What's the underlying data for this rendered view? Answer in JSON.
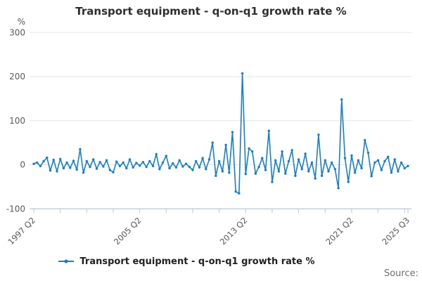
{
  "chart": {
    "title": "Transport equipment - q-on-q1 growth rate %",
    "unit": "%",
    "source_label": "Source:"
  },
  "legend": {
    "label": "Transport equipment - q-on-q1 growth rate %"
  },
  "colors": {
    "line": "#1a80c4",
    "grid": "#e6e6e6",
    "axis": "#b9c7d9",
    "tick_label": "#595959",
    "title": "#2e2e2e",
    "legend_text": "#1f1f1f",
    "source": "#6e6e6e"
  },
  "chart_data": {
    "type": "line",
    "title": "Transport equipment - q-on-q1 growth rate %",
    "xlabel": "",
    "ylabel": "%",
    "ylim": [
      -100,
      300
    ],
    "yticks": [
      300,
      200,
      100,
      0,
      -100
    ],
    "grid": "horizontal",
    "legend_position": "bottom",
    "x_unit": "quarter",
    "x_range": [
      "1997 Q2",
      "2025 Q3"
    ],
    "x_tick_labels": [
      {
        "index": 0,
        "label": "1997 Q2"
      },
      {
        "index": 32,
        "label": "2005 Q2"
      },
      {
        "index": 64,
        "label": "2013 Q2"
      },
      {
        "index": 96,
        "label": "2021 Q2"
      },
      {
        "index": 113,
        "label": "2025 Q3"
      }
    ],
    "minor_tick_step_quarters": 8,
    "series": [
      {
        "name": "Transport equipment - q-on-q1 growth rate %",
        "values": [
          2,
          5,
          -3,
          8,
          16,
          -13,
          11,
          -15,
          13,
          -8,
          5,
          -7,
          9,
          -11,
          35,
          -18,
          8,
          -5,
          12,
          -9,
          6,
          -4,
          10,
          -12,
          -17,
          7,
          -3,
          5,
          -8,
          12,
          -6,
          4,
          -2,
          6,
          -5,
          8,
          -3,
          24,
          -10,
          5,
          20,
          -8,
          3,
          -6,
          10,
          -4,
          2,
          -5,
          -12,
          8,
          -6,
          15,
          -10,
          12,
          50,
          -25,
          8,
          -15,
          45,
          -18,
          74,
          -61,
          -65,
          207,
          -21,
          37,
          30,
          -20,
          -5,
          15,
          -12,
          77,
          -39,
          10,
          -15,
          30,
          -20,
          8,
          33,
          -25,
          12,
          -10,
          25,
          -15,
          5,
          -31,
          68,
          -25,
          10,
          -15,
          5,
          -10,
          -53,
          148,
          15,
          -39,
          21,
          -18,
          10,
          -8,
          56,
          27,
          -26,
          5,
          10,
          -12,
          8,
          18,
          -18,
          12,
          -15,
          5,
          -8,
          -3
        ]
      }
    ]
  }
}
